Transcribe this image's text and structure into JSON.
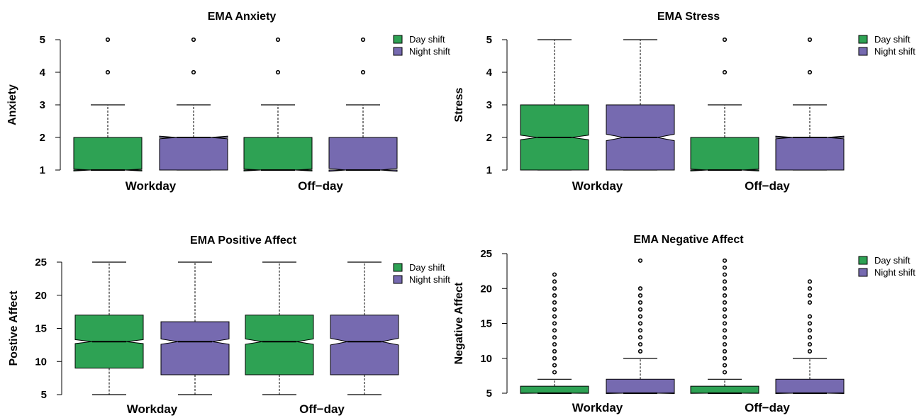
{
  "colors": {
    "day": "#2ea254",
    "night": "#766ab0"
  },
  "chart_data": [
    {
      "type": "boxplot",
      "title": "EMA Anxiety",
      "ylabel": "Anxiety",
      "ylim": [
        1,
        5
      ],
      "yticks": [
        1,
        2,
        3,
        4,
        5
      ],
      "groups": [
        "Workday",
        "Off−day"
      ],
      "legend": {
        "position": "top-right",
        "entries": [
          "Day shift",
          "Night shift"
        ]
      },
      "boxes": [
        {
          "group": "Workday",
          "series": "Day shift",
          "q1": 1,
          "median": 1,
          "q3": 2,
          "whisker_low": 1,
          "whisker_high": 3,
          "notch": [
            0.97,
            1.03
          ],
          "outliers": [
            4,
            5
          ]
        },
        {
          "group": "Workday",
          "series": "Night shift",
          "q1": 1,
          "median": 2,
          "q3": 2,
          "whisker_low": 1,
          "whisker_high": 3,
          "notch": [
            1.96,
            2.04
          ],
          "outliers": [
            4,
            5
          ]
        },
        {
          "group": "Off−day",
          "series": "Day shift",
          "q1": 1,
          "median": 1,
          "q3": 2,
          "whisker_low": 1,
          "whisker_high": 3,
          "notch": [
            0.97,
            1.03
          ],
          "outliers": [
            4,
            5
          ]
        },
        {
          "group": "Off−day",
          "series": "Night shift",
          "q1": 1,
          "median": 1,
          "q3": 2,
          "whisker_low": 1,
          "whisker_high": 3,
          "notch": [
            0.96,
            1.05
          ],
          "outliers": [
            4,
            5
          ]
        }
      ]
    },
    {
      "type": "boxplot",
      "title": "EMA Stress",
      "ylabel": "Stress",
      "ylim": [
        1,
        5
      ],
      "yticks": [
        1,
        2,
        3,
        4,
        5
      ],
      "groups": [
        "Workday",
        "Off−day"
      ],
      "legend": {
        "position": "top-right",
        "entries": [
          "Day shift",
          "Night shift"
        ]
      },
      "boxes": [
        {
          "group": "Workday",
          "series": "Day shift",
          "q1": 1,
          "median": 2,
          "q3": 3,
          "whisker_low": 1,
          "whisker_high": 5,
          "notch": [
            1.93,
            2.07
          ],
          "outliers": []
        },
        {
          "group": "Workday",
          "series": "Night shift",
          "q1": 1,
          "median": 2,
          "q3": 3,
          "whisker_low": 1,
          "whisker_high": 5,
          "notch": [
            1.9,
            2.1
          ],
          "outliers": []
        },
        {
          "group": "Off−day",
          "series": "Day shift",
          "q1": 1,
          "median": 1,
          "q3": 2,
          "whisker_low": 1,
          "whisker_high": 3,
          "notch": [
            0.97,
            1.03
          ],
          "outliers": [
            4,
            5
          ]
        },
        {
          "group": "Off−day",
          "series": "Night shift",
          "q1": 1,
          "median": 2,
          "q3": 2,
          "whisker_low": 1,
          "whisker_high": 3,
          "notch": [
            1.96,
            2.04
          ],
          "outliers": [
            4,
            5
          ]
        }
      ]
    },
    {
      "type": "boxplot",
      "title": "EMA Positive Affect",
      "ylabel": "Postive Affect",
      "ylim": [
        5,
        25
      ],
      "yticks": [
        5,
        10,
        15,
        20,
        25
      ],
      "groups": [
        "Workday",
        "Off−day"
      ],
      "legend": {
        "position": "top-right",
        "entries": [
          "Day shift",
          "Night shift"
        ]
      },
      "boxes": [
        {
          "group": "Workday",
          "series": "Day shift",
          "q1": 9,
          "median": 13,
          "q3": 17,
          "whisker_low": 5,
          "whisker_high": 25,
          "notch": [
            12.7,
            13.3
          ],
          "outliers": []
        },
        {
          "group": "Workday",
          "series": "Night shift",
          "q1": 8,
          "median": 13,
          "q3": 16,
          "whisker_low": 5,
          "whisker_high": 25,
          "notch": [
            12.6,
            13.4
          ],
          "outliers": []
        },
        {
          "group": "Off−day",
          "series": "Day shift",
          "q1": 8,
          "median": 13,
          "q3": 17,
          "whisker_low": 5,
          "whisker_high": 25,
          "notch": [
            12.6,
            13.4
          ],
          "outliers": []
        },
        {
          "group": "Off−day",
          "series": "Night shift",
          "q1": 8,
          "median": 13,
          "q3": 17,
          "whisker_low": 5,
          "whisker_high": 25,
          "notch": [
            12.5,
            13.5
          ],
          "outliers": []
        }
      ]
    },
    {
      "type": "boxplot",
      "title": "EMA Negative Affect",
      "ylabel": "Negative Affect",
      "ylim": [
        5,
        25
      ],
      "yticks": [
        5,
        10,
        15,
        20,
        25
      ],
      "groups": [
        "Workday",
        "Off−day"
      ],
      "legend": {
        "position": "top-right",
        "entries": [
          "Day shift",
          "Night shift"
        ]
      },
      "boxes": [
        {
          "group": "Workday",
          "series": "Day shift",
          "q1": 5,
          "median": 5,
          "q3": 6,
          "whisker_low": 5,
          "whisker_high": 7,
          "notch": [
            4.97,
            5.03
          ],
          "outliers": [
            8,
            9,
            10,
            11,
            12,
            13,
            14,
            15,
            16,
            17,
            18,
            19,
            20,
            21,
            22
          ]
        },
        {
          "group": "Workday",
          "series": "Night shift",
          "q1": 5,
          "median": 5,
          "q3": 7,
          "whisker_low": 5,
          "whisker_high": 10,
          "notch": [
            4.95,
            5.05
          ],
          "outliers": [
            11,
            12,
            13,
            14,
            15,
            16,
            17,
            18,
            19,
            20,
            24
          ]
        },
        {
          "group": "Off−day",
          "series": "Day shift",
          "q1": 5,
          "median": 5,
          "q3": 6,
          "whisker_low": 5,
          "whisker_high": 7,
          "notch": [
            4.97,
            5.03
          ],
          "outliers": [
            8,
            9,
            10,
            11,
            12,
            13,
            14,
            15,
            16,
            17,
            18,
            19,
            20,
            21,
            22,
            23,
            24
          ]
        },
        {
          "group": "Off−day",
          "series": "Night shift",
          "q1": 5,
          "median": 5,
          "q3": 7,
          "whisker_low": 5,
          "whisker_high": 10,
          "notch": [
            4.95,
            5.05
          ],
          "outliers": [
            11,
            12,
            13,
            14,
            15,
            16,
            18,
            19,
            20,
            21
          ]
        }
      ]
    }
  ]
}
